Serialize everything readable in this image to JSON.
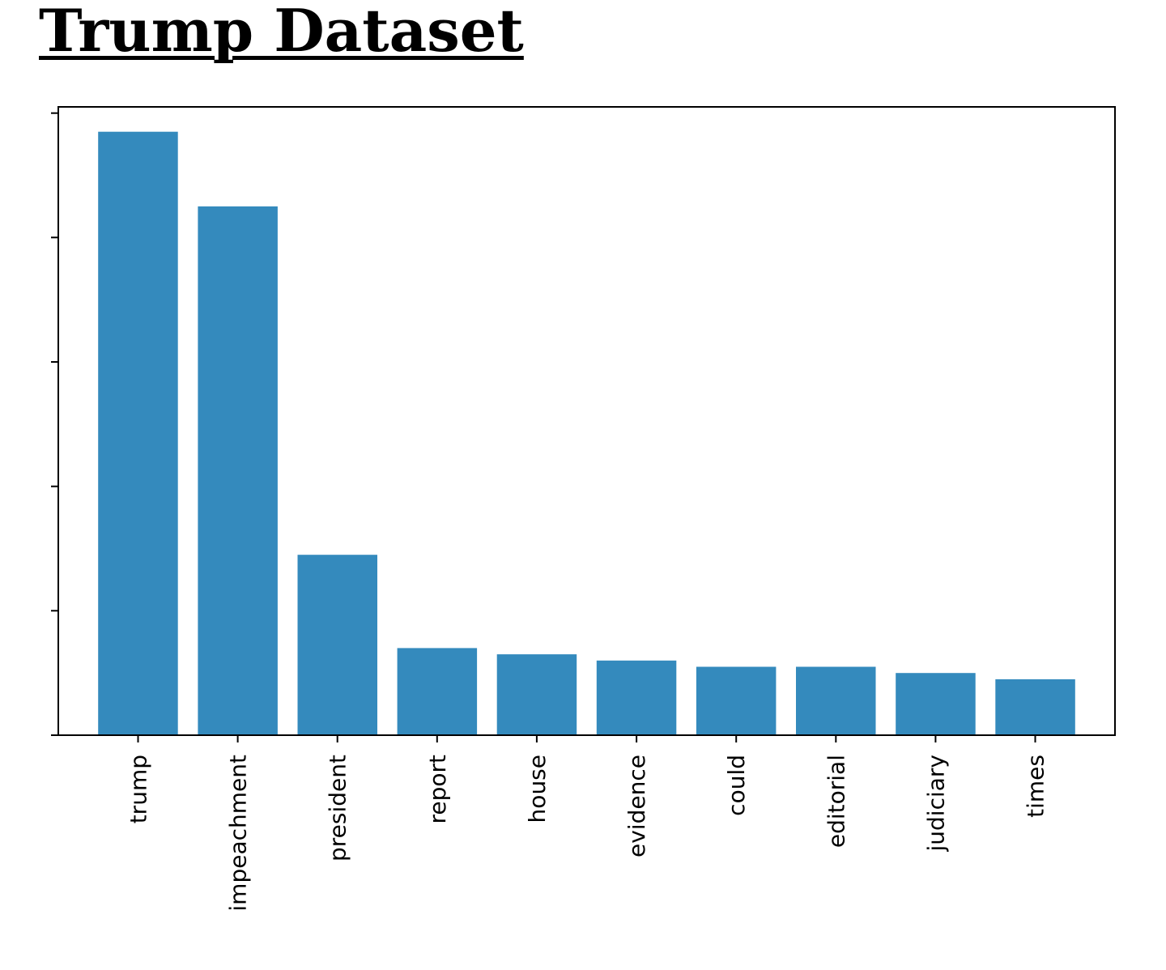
{
  "page": {
    "title": "Trump Dataset"
  },
  "colors": {
    "bar": "#348abd",
    "axis": "#000000"
  },
  "chart_data": {
    "type": "bar",
    "title": "",
    "xlabel": "",
    "ylabel": "",
    "categories": [
      "trump",
      "impeachment",
      "president",
      "report",
      "house",
      "evidence",
      "could",
      "editorial",
      "judiciary",
      "times"
    ],
    "values": [
      97,
      85,
      29,
      14,
      13,
      12,
      11,
      11,
      10,
      9
    ],
    "ylim": [
      0,
      101
    ],
    "y_ticks": [
      0,
      20,
      40,
      60,
      80,
      100
    ],
    "y_tick_labels_visible": false,
    "x_tick_label_rotation": -90,
    "grid": false,
    "legend": "none"
  }
}
